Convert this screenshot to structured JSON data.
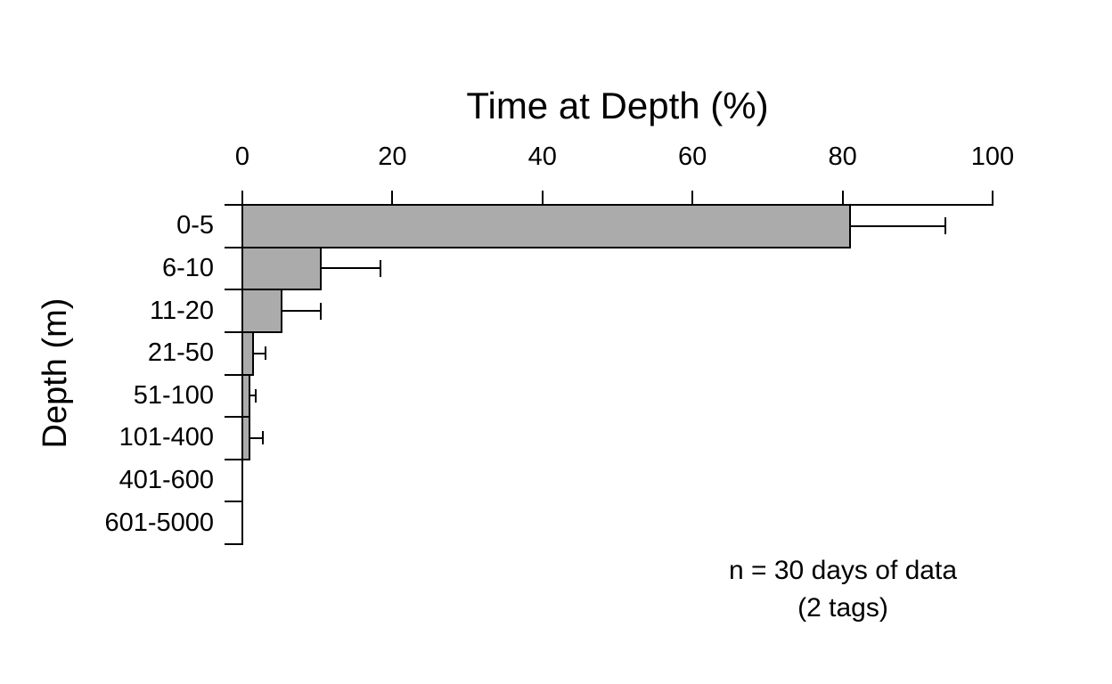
{
  "chart_data": {
    "type": "bar",
    "orientation": "horizontal",
    "title": "Time at Depth (%)",
    "xlabel": "Time at Depth (%)",
    "ylabel": "Depth (m)",
    "categories": [
      "0-5",
      "6-10",
      "11-20",
      "21-50",
      "51-100",
      "101-400",
      "401-600",
      "601-5000"
    ],
    "values": [
      81,
      10.5,
      5.2,
      1.4,
      1,
      1,
      0,
      0
    ],
    "errors_upper": [
      12.7,
      7.9,
      5.3,
      1.7,
      0.8,
      1.7,
      null,
      null
    ],
    "x_ticks": [
      0,
      20,
      40,
      60,
      80,
      100
    ],
    "xlim": [
      0,
      100
    ],
    "grid": false,
    "legend": "none",
    "bar_color": "#ABABAB",
    "line_color": "#000000",
    "annotation": {
      "line1": "n = 30 days of data",
      "line2": "(2 tags)"
    }
  }
}
